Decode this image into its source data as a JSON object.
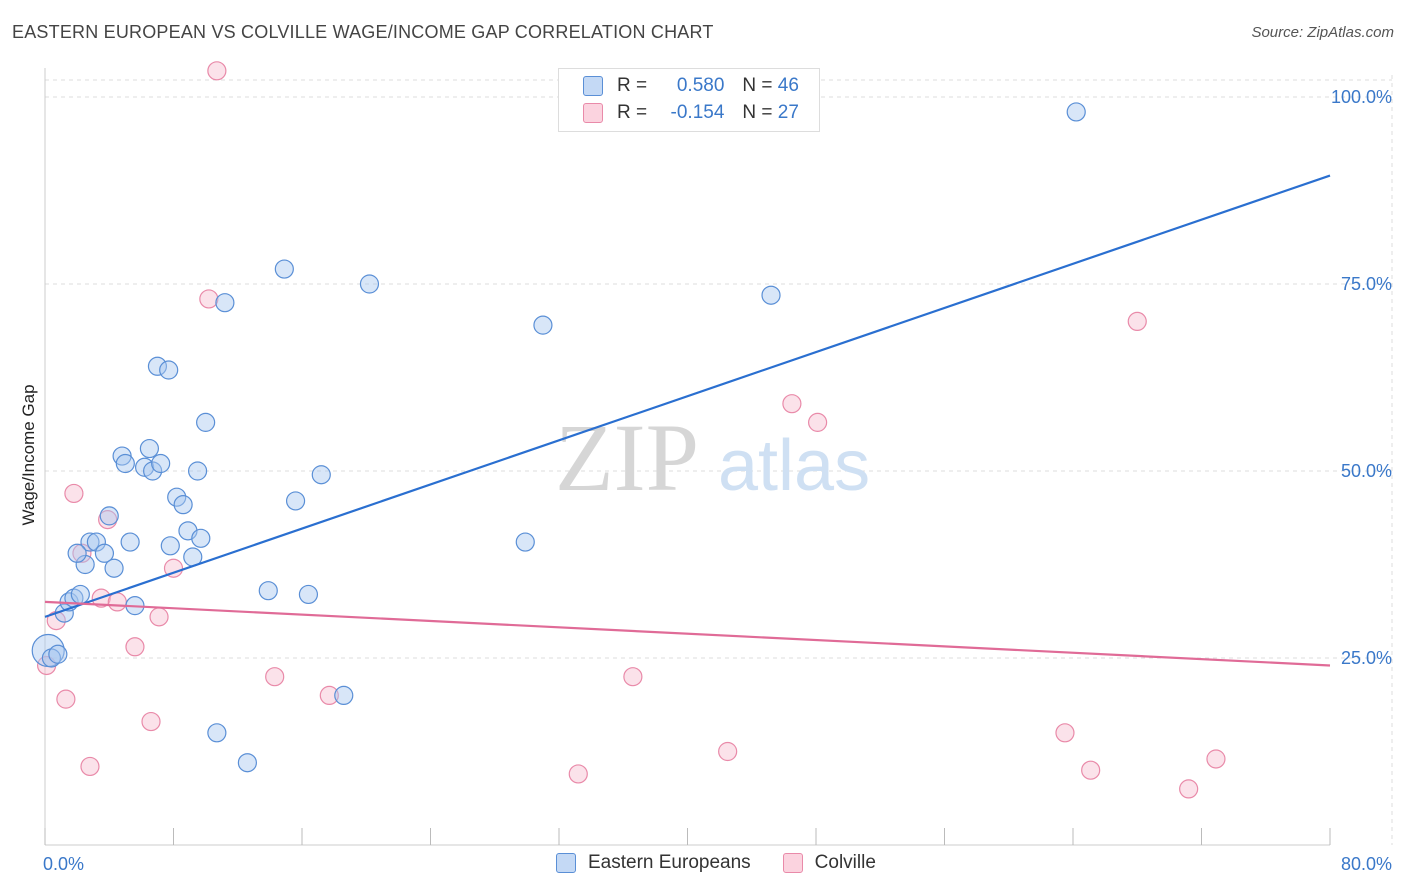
{
  "title": "EASTERN EUROPEAN VS COLVILLE WAGE/INCOME GAP CORRELATION CHART",
  "source": "Source: ZipAtlas.com",
  "watermark": {
    "zip": "ZIP",
    "atlas": "atlas"
  },
  "legend_top": {
    "rows": [
      {
        "r_label": "R =",
        "r_value": "0.580",
        "n_label": "N =",
        "n_value": "46"
      },
      {
        "r_label": "R =",
        "r_value": "-0.154",
        "n_label": "N =",
        "n_value": "27"
      }
    ]
  },
  "colors": {
    "blue_fill": "#a9c8f0",
    "blue_stroke": "#5a8fd6",
    "blue_line": "#2a6fd0",
    "pink_fill": "#f7bfd0",
    "pink_stroke": "#e98aa9",
    "pink_line": "#e06b97",
    "grid": "#dddddd",
    "axis_text": "#3a78c9"
  },
  "chart_data": {
    "type": "scatter",
    "title": "EASTERN EUROPEAN VS COLVILLE WAGE/INCOME GAP CORRELATION CHART",
    "xlabel": "",
    "ylabel": "Wage/Income Gap",
    "xlim": [
      0,
      80
    ],
    "ylim": [
      0,
      105
    ],
    "x_tick_labels": [
      "0.0%",
      "80.0%"
    ],
    "y_ticks": [
      25,
      50,
      75,
      100
    ],
    "y_tick_labels": [
      "25.0%",
      "50.0%",
      "75.0%",
      "100.0%"
    ],
    "grid": true,
    "legend_position": "bottom-center",
    "series": [
      {
        "name": "Eastern Europeans",
        "r": 0.58,
        "n": 46,
        "trend": {
          "x": [
            0,
            80
          ],
          "y": [
            30.5,
            89.5
          ]
        },
        "points": [
          {
            "x": 0.2,
            "y": 26.0,
            "big": true
          },
          {
            "x": 0.4,
            "y": 25.0
          },
          {
            "x": 0.8,
            "y": 25.5
          },
          {
            "x": 1.2,
            "y": 31.0
          },
          {
            "x": 1.5,
            "y": 32.5
          },
          {
            "x": 1.8,
            "y": 33.0
          },
          {
            "x": 2.2,
            "y": 33.5
          },
          {
            "x": 2.5,
            "y": 37.5
          },
          {
            "x": 2.8,
            "y": 40.5
          },
          {
            "x": 3.2,
            "y": 40.5
          },
          {
            "x": 3.7,
            "y": 39.0
          },
          {
            "x": 4.0,
            "y": 44.0
          },
          {
            "x": 4.3,
            "y": 37.0
          },
          {
            "x": 4.8,
            "y": 52.0
          },
          {
            "x": 5.0,
            "y": 51.0
          },
          {
            "x": 5.3,
            "y": 40.5
          },
          {
            "x": 5.6,
            "y": 32.0
          },
          {
            "x": 6.2,
            "y": 50.5
          },
          {
            "x": 6.5,
            "y": 53.0
          },
          {
            "x": 6.7,
            "y": 50.0
          },
          {
            "x": 7.2,
            "y": 51.0
          },
          {
            "x": 7.0,
            "y": 64.0
          },
          {
            "x": 7.7,
            "y": 63.5
          },
          {
            "x": 7.8,
            "y": 40.0
          },
          {
            "x": 8.2,
            "y": 46.5
          },
          {
            "x": 8.6,
            "y": 45.5
          },
          {
            "x": 8.9,
            "y": 42.0
          },
          {
            "x": 9.2,
            "y": 38.5
          },
          {
            "x": 9.5,
            "y": 50.0
          },
          {
            "x": 9.7,
            "y": 41.0
          },
          {
            "x": 10.0,
            "y": 56.5
          },
          {
            "x": 10.7,
            "y": 15.0
          },
          {
            "x": 11.2,
            "y": 72.5
          },
          {
            "x": 12.6,
            "y": 11.0
          },
          {
            "x": 13.9,
            "y": 34.0
          },
          {
            "x": 14.9,
            "y": 77.0
          },
          {
            "x": 15.6,
            "y": 46.0
          },
          {
            "x": 16.4,
            "y": 33.5
          },
          {
            "x": 17.2,
            "y": 49.5
          },
          {
            "x": 18.6,
            "y": 20.0
          },
          {
            "x": 20.2,
            "y": 75.0
          },
          {
            "x": 29.9,
            "y": 40.5
          },
          {
            "x": 31.0,
            "y": 69.5
          },
          {
            "x": 45.2,
            "y": 73.5
          },
          {
            "x": 64.2,
            "y": 98.0
          },
          {
            "x": 2.0,
            "y": 39.0
          }
        ]
      },
      {
        "name": "Colville",
        "r": -0.154,
        "n": 27,
        "trend": {
          "x": [
            0,
            80
          ],
          "y": [
            32.5,
            24.0
          ]
        },
        "points": [
          {
            "x": 0.1,
            "y": 24.0
          },
          {
            "x": 0.7,
            "y": 30.0
          },
          {
            "x": 1.3,
            "y": 19.5
          },
          {
            "x": 1.8,
            "y": 47.0
          },
          {
            "x": 2.3,
            "y": 39.0
          },
          {
            "x": 2.8,
            "y": 10.5
          },
          {
            "x": 3.5,
            "y": 33.0
          },
          {
            "x": 3.9,
            "y": 43.5
          },
          {
            "x": 4.5,
            "y": 32.5
          },
          {
            "x": 5.6,
            "y": 26.5
          },
          {
            "x": 6.6,
            "y": 16.5
          },
          {
            "x": 7.1,
            "y": 30.5
          },
          {
            "x": 8.0,
            "y": 37.0
          },
          {
            "x": 10.2,
            "y": 73.0
          },
          {
            "x": 10.7,
            "y": 103.5
          },
          {
            "x": 14.3,
            "y": 22.5
          },
          {
            "x": 17.7,
            "y": 20.0
          },
          {
            "x": 33.2,
            "y": 9.5
          },
          {
            "x": 36.6,
            "y": 22.5
          },
          {
            "x": 42.5,
            "y": 12.5
          },
          {
            "x": 46.5,
            "y": 59.0
          },
          {
            "x": 48.1,
            "y": 56.5
          },
          {
            "x": 63.5,
            "y": 15.0
          },
          {
            "x": 65.1,
            "y": 10.0
          },
          {
            "x": 68.0,
            "y": 70.0
          },
          {
            "x": 71.2,
            "y": 7.5
          },
          {
            "x": 72.9,
            "y": 11.5
          }
        ]
      }
    ]
  }
}
